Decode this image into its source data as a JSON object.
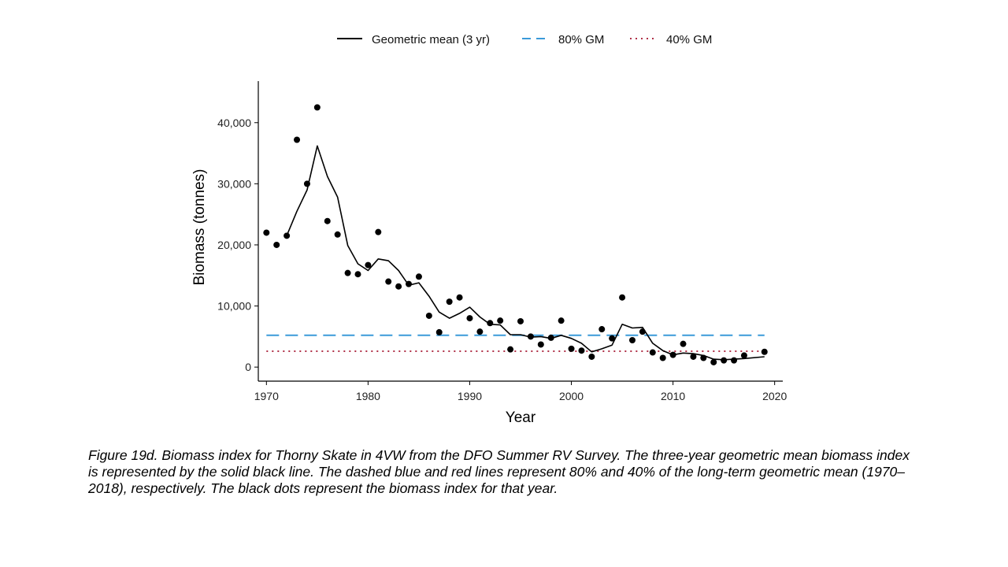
{
  "chart_data": {
    "type": "line",
    "xlabel": "Year",
    "ylabel": "Biomass (tonnes)",
    "xlim": [
      1969.2,
      2020.8
    ],
    "ylim": [
      -2300,
      46800
    ],
    "x_ticks": [
      1970,
      1980,
      1990,
      2000,
      2010,
      2020
    ],
    "y_ticks": [
      0,
      10000,
      20000,
      30000,
      40000
    ],
    "y_tick_labels": [
      "0",
      "10,000",
      "20,000",
      "30,000",
      "40,000"
    ],
    "grid": false,
    "legend_position": "top",
    "legend": [
      {
        "label": "Geometric mean (3 yr)",
        "style": "solid",
        "color": "#000000"
      },
      {
        "label": "80% GM",
        "style": "dashed",
        "color": "#3a9ad9"
      },
      {
        "label": "40% GM",
        "style": "dotted",
        "color": "#b03048"
      }
    ],
    "points": {
      "x": [
        1970,
        1971,
        1972,
        1973,
        1974,
        1975,
        1976,
        1977,
        1978,
        1979,
        1980,
        1981,
        1982,
        1983,
        1984,
        1985,
        1986,
        1987,
        1988,
        1989,
        1990,
        1991,
        1992,
        1993,
        1994,
        1995,
        1996,
        1997,
        1998,
        1999,
        2000,
        2001,
        2002,
        2003,
        2004,
        2005,
        2006,
        2007,
        2008,
        2009,
        2010,
        2011,
        2012,
        2013,
        2014,
        2015,
        2016,
        2017,
        2019
      ],
      "y": [
        22000,
        20000,
        21500,
        37200,
        30000,
        42500,
        23900,
        21700,
        15400,
        15200,
        16700,
        22100,
        14000,
        13200,
        13600,
        14800,
        8400,
        5700,
        10700,
        11400,
        8000,
        5800,
        7200,
        7600,
        2900,
        7500,
        5000,
        3700,
        4800,
        7600,
        3000,
        2700,
        1700,
        6200,
        4700,
        11400,
        4400,
        5800,
        2400,
        1500,
        2000,
        3800,
        1700,
        1500,
        800,
        1100,
        1100,
        1900,
        2500
      ]
    },
    "series": [
      {
        "name": "Geometric mean (3 yr)",
        "x": [
          1972,
          1973,
          1974,
          1975,
          1976,
          1977,
          1978,
          1979,
          1980,
          1981,
          1982,
          1983,
          1984,
          1985,
          1986,
          1987,
          1988,
          1989,
          1990,
          1991,
          1992,
          1993,
          1994,
          1995,
          1996,
          1997,
          1998,
          1999,
          2000,
          2001,
          2002,
          2003,
          2004,
          2005,
          2006,
          2007,
          2008,
          2009,
          2010,
          2011,
          2012,
          2013,
          2014,
          2015,
          2016,
          2017,
          2019
        ],
        "y": [
          21500,
          25500,
          29000,
          36200,
          31200,
          27800,
          19900,
          16900,
          15800,
          17700,
          17400,
          15800,
          13400,
          13800,
          11600,
          9000,
          8000,
          8800,
          9800,
          8200,
          7000,
          6900,
          5300,
          5300,
          4900,
          5000,
          4700,
          5200,
          4700,
          3900,
          2500,
          3000,
          3600,
          7000,
          6400,
          6500,
          3900,
          2700,
          2000,
          2300,
          2200,
          1900,
          1300,
          1200,
          1300,
          1400,
          1700
        ]
      }
    ],
    "reference_lines": [
      {
        "name": "80% GM",
        "y": 5200,
        "style": "dashed",
        "color": "#3a9ad9"
      },
      {
        "name": "40% GM",
        "y": 2600,
        "style": "dotted",
        "color": "#b03048"
      }
    ]
  },
  "caption": "Figure 19d. Biomass index for Thorny Skate in 4VW from the DFO Summer RV Survey. The three-year geometric mean biomass index is represented by the solid black line. The dashed blue and red lines represent 80% and 40% of the long-term geometric mean (1970–2018), respectively. The black dots represent the biomass index for that year."
}
